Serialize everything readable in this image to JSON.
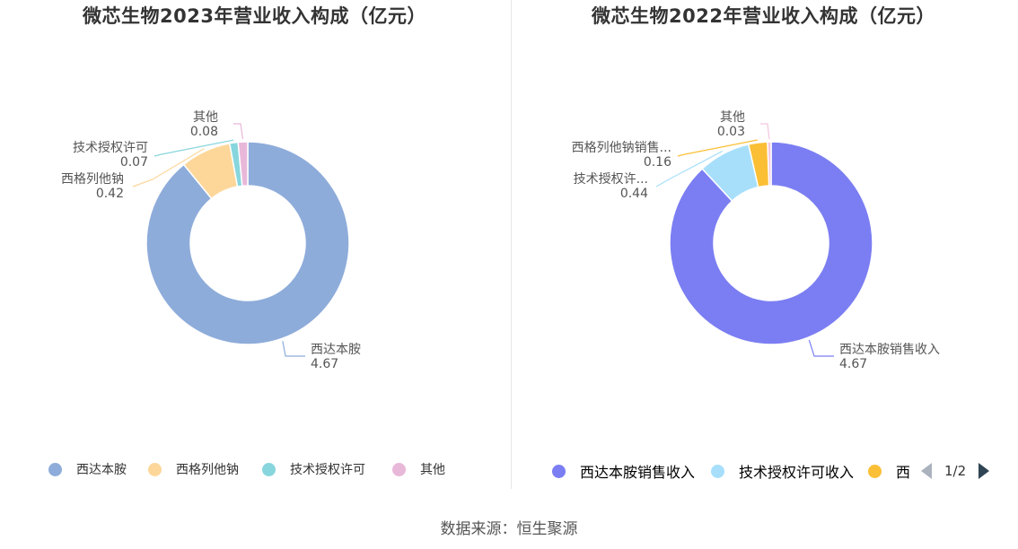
{
  "source": "数据来源：恒生聚源",
  "charts": [
    {
      "title": "微芯生物2023年营业收入构成（亿元）",
      "legend": [
        "西达本胺",
        "西格列他钠",
        "技术授权许可",
        "其他"
      ],
      "pager": null
    },
    {
      "title": "微芯生物2022年营业收入构成（亿元）",
      "legend": [
        "西达本胺销售收入",
        "技术授权许可收入",
        "西"
      ],
      "pager": "1/2"
    }
  ],
  "chart_data": [
    {
      "type": "pie",
      "title": "微芯生物2023年营业收入构成（亿元）",
      "unit": "亿元",
      "donut": true,
      "legend_position": "bottom",
      "slices": [
        {
          "name": "西达本胺",
          "label": "西达本胺",
          "value": 4.67,
          "color": "#8eacda"
        },
        {
          "name": "西格列他钠",
          "label": "西格列他钠",
          "value": 0.42,
          "color": "#fdd79a"
        },
        {
          "name": "技术授权许可",
          "label": "技术授权许可",
          "value": 0.07,
          "color": "#88d6dd"
        },
        {
          "name": "其他",
          "label": "其他",
          "value": 0.08,
          "color": "#e8b8d9"
        }
      ]
    },
    {
      "type": "pie",
      "title": "微芯生物2022年营业收入构成（亿元）",
      "unit": "亿元",
      "donut": true,
      "legend_position": "bottom",
      "slices": [
        {
          "name": "西达本胺销售收入",
          "label": "西达本胺销售收入",
          "value": 4.67,
          "color": "#7b7ef2"
        },
        {
          "name": "技术授权许可收入",
          "label": "技术授权许...",
          "value": 0.44,
          "color": "#a7dffb"
        },
        {
          "name": "西格列他钠销售收入",
          "label": "西格列他钠销售...",
          "value": 0.16,
          "color": "#fbbf36"
        },
        {
          "name": "其他",
          "label": "其他",
          "value": 0.03,
          "color": "#f3c6dc"
        }
      ]
    }
  ]
}
